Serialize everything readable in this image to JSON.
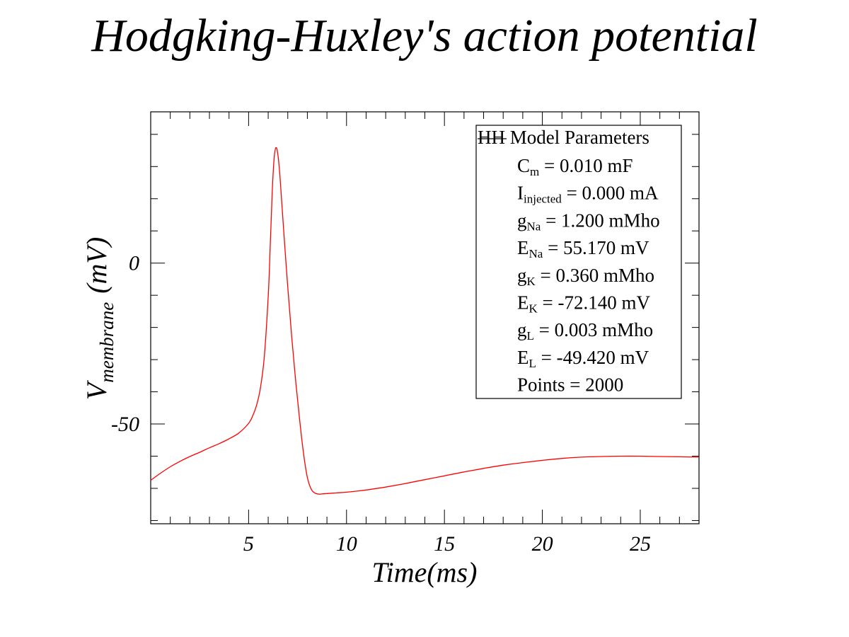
{
  "chart_data": {
    "type": "line",
    "title": "Hodgking-Huxley's action potential",
    "xlabel": "Time(ms)",
    "ylabel": {
      "main": "V",
      "subscript": "membrane",
      "unit": "(mV)"
    },
    "xlim": [
      0,
      28
    ],
    "ylim": [
      -81,
      47
    ],
    "x_ticks_major": [
      5,
      10,
      15,
      20,
      25
    ],
    "x_ticks_minor_step": 1,
    "y_ticks_major": [
      0,
      -50
    ],
    "y_ticks_minor_step": 10,
    "grid": false,
    "series": [
      {
        "color": "#ff0000",
        "x": [
          0,
          0.5,
          1,
          1.5,
          2,
          2.5,
          3,
          3.5,
          4,
          4.5,
          5,
          5.2,
          5.4,
          5.6,
          5.8,
          6.0,
          6.1,
          6.2,
          6.3,
          6.4,
          6.5,
          6.6,
          6.7,
          6.8,
          7.0,
          7.2,
          7.4,
          7.6,
          7.8,
          8.0,
          8.2,
          8.4,
          8.6,
          8.8,
          9.0,
          9.5,
          10,
          11,
          12,
          13,
          14,
          15,
          16,
          17,
          18,
          19,
          20,
          21,
          22,
          23,
          24,
          25,
          26,
          27,
          28
        ],
        "y": [
          -67.5,
          -65.3,
          -63.3,
          -61.6,
          -60.1,
          -58.8,
          -57.4,
          -56.1,
          -54.6,
          -52.8,
          -49.8,
          -47.6,
          -44.3,
          -38.9,
          -29.2,
          -10.4,
          4.5,
          21.2,
          32.4,
          35.9,
          33.5,
          27.0,
          18.3,
          9.4,
          -7.6,
          -22.9,
          -36.4,
          -48.4,
          -58.9,
          -66.6,
          -70.3,
          -71.5,
          -71.8,
          -71.7,
          -71.6,
          -71.4,
          -71.2,
          -70.5,
          -69.6,
          -68.5,
          -67.3,
          -66.1,
          -64.9,
          -63.8,
          -62.8,
          -62.0,
          -61.3,
          -60.7,
          -60.3,
          -60.1,
          -60.0,
          -60.0,
          -60.1,
          -60.2,
          -60.3
        ]
      }
    ],
    "legend": {
      "placement": "top-right",
      "title": "HH Model Parameters",
      "entries": [
        {
          "sym": "C",
          "sub": "m",
          "rest": " = 0.010 mF"
        },
        {
          "sym": "I",
          "sub": "injected",
          "rest": " = 0.000 mA"
        },
        {
          "sym": "g",
          "sub": "Na",
          "rest": " = 1.200 mMho"
        },
        {
          "sym": "E",
          "sub": "Na",
          "rest": " = 55.170 mV"
        },
        {
          "sym": "g",
          "sub": "K",
          "rest": " = 0.360 mMho"
        },
        {
          "sym": "E",
          "sub": "K",
          "rest": " = -72.140 mV"
        },
        {
          "sym": "g",
          "sub": "L",
          "rest": " = 0.003 mMho"
        },
        {
          "sym": "E",
          "sub": "L",
          "rest": " = -49.420 mV"
        },
        {
          "sym": "",
          "sub": "",
          "rest": "Points = 2000"
        }
      ]
    }
  }
}
